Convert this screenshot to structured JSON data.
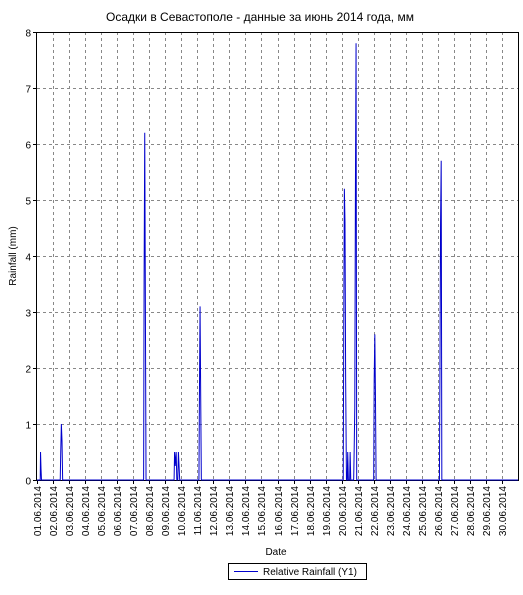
{
  "chart_data": {
    "type": "line",
    "title": "Осадки в Севастополе - данные за июнь 2014 года, мм",
    "xlabel": "Date",
    "ylabel": "Rainfall (mm)",
    "ylim": [
      0,
      8
    ],
    "yticks": [
      "0",
      "1",
      "2",
      "3",
      "4",
      "5",
      "6",
      "7",
      "8"
    ],
    "xlim": [
      0,
      30
    ],
    "xticks": [
      "01.06.2014",
      "02.06.2014",
      "03.06.2014",
      "04.06.2014",
      "05.06.2014",
      "06.06.2014",
      "07.06.2014",
      "08.06.2014",
      "09.06.2014",
      "10.06.2014",
      "11.06.2014",
      "12.06.2014",
      "13.06.2014",
      "14.06.2014",
      "15.06.2014",
      "16.06.2014",
      "17.06.2014",
      "18.06.2014",
      "19.06.2014",
      "20.06.2014",
      "21.06.2014",
      "22.06.2014",
      "23.06.2014",
      "24.06.2014",
      "25.06.2014",
      "26.06.2014",
      "27.06.2014",
      "28.06.2014",
      "29.06.2014",
      "30.06.2014"
    ],
    "grid": true,
    "legend_position": "bottom-center",
    "series": [
      {
        "name": "Relative Rainfall (Y1)",
        "color": "#0000cc",
        "points": [
          [
            0.0,
            0
          ],
          [
            0.2,
            0
          ],
          [
            0.22,
            0.5
          ],
          [
            0.25,
            0.2
          ],
          [
            0.28,
            0
          ],
          [
            0.32,
            0
          ],
          [
            1.45,
            0
          ],
          [
            1.48,
            0.5
          ],
          [
            1.52,
            1.0
          ],
          [
            1.56,
            0.7
          ],
          [
            1.6,
            0
          ],
          [
            6.65,
            0
          ],
          [
            6.68,
            3.6
          ],
          [
            6.72,
            6.2
          ],
          [
            6.76,
            3.1
          ],
          [
            6.8,
            0
          ],
          [
            8.55,
            0
          ],
          [
            8.58,
            0.5
          ],
          [
            8.62,
            0.25
          ],
          [
            8.68,
            0.5
          ],
          [
            8.72,
            0
          ],
          [
            8.78,
            0
          ],
          [
            8.82,
            0.5
          ],
          [
            8.86,
            0.25
          ],
          [
            8.9,
            0
          ],
          [
            10.1,
            0
          ],
          [
            10.13,
            1.5
          ],
          [
            10.17,
            3.1
          ],
          [
            10.21,
            1.5
          ],
          [
            10.25,
            0
          ],
          [
            19.1,
            0
          ],
          [
            19.13,
            2.6
          ],
          [
            19.17,
            5.2
          ],
          [
            19.21,
            4.6
          ],
          [
            19.25,
            1.8
          ],
          [
            19.3,
            0
          ],
          [
            19.35,
            0
          ],
          [
            19.38,
            0.5
          ],
          [
            19.42,
            0
          ],
          [
            19.5,
            0
          ],
          [
            19.53,
            0.5
          ],
          [
            19.57,
            0
          ],
          [
            19.75,
            0
          ],
          [
            19.78,
            0.5
          ],
          [
            19.82,
            1.3
          ],
          [
            19.86,
            5.2
          ],
          [
            19.9,
            7.8
          ],
          [
            19.94,
            0
          ],
          [
            21.0,
            0
          ],
          [
            21.03,
            1.8
          ],
          [
            21.07,
            2.6
          ],
          [
            21.11,
            1.5
          ],
          [
            21.15,
            0
          ],
          [
            25.1,
            0
          ],
          [
            25.13,
            1.8
          ],
          [
            25.17,
            4.6
          ],
          [
            25.21,
            5.7
          ],
          [
            25.25,
            0
          ],
          [
            30.0,
            0
          ]
        ]
      }
    ]
  }
}
